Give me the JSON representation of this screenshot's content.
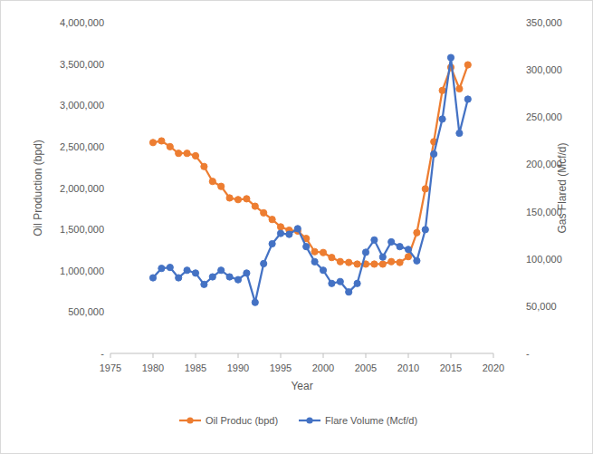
{
  "chart_data": {
    "type": "line",
    "x_label": "Year",
    "y_label": "Oil Production (bpd)",
    "y2_label": "Gas Flared (Mcf/d)",
    "x": [
      1980,
      1981,
      1982,
      1983,
      1984,
      1985,
      1986,
      1987,
      1988,
      1989,
      1990,
      1991,
      1992,
      1993,
      1994,
      1995,
      1996,
      1997,
      1998,
      1999,
      2000,
      2001,
      2002,
      2003,
      2004,
      2005,
      2006,
      2007,
      2008,
      2009,
      2010,
      2011,
      2012,
      2013,
      2014,
      2015,
      2016,
      2017
    ],
    "series": [
      {
        "name": "Oil Produc (bpd)",
        "color": "#ed7d31",
        "marker": "circle",
        "values": [
          2550000,
          2570000,
          2500000,
          2420000,
          2420000,
          2390000,
          2260000,
          2080000,
          2020000,
          1880000,
          1860000,
          1870000,
          1780000,
          1700000,
          1620000,
          1530000,
          1490000,
          1480000,
          1390000,
          1230000,
          1220000,
          1160000,
          1110000,
          1100000,
          1080000,
          1080000,
          1080000,
          1080000,
          1110000,
          1100000,
          1170000,
          1460000,
          1990000,
          2560000,
          3180000,
          3460000,
          3200000,
          3490000
        ]
      },
      {
        "name": "Flare Volume (Mcf/d)",
        "color": "#4472c4",
        "marker": "circle",
        "axis": "y2",
        "values": [
          80000,
          90000,
          91000,
          80000,
          88000,
          85000,
          73000,
          81000,
          88000,
          81000,
          78000,
          85000,
          54000,
          95000,
          116000,
          127000,
          126000,
          132000,
          113000,
          97000,
          88000,
          74000,
          76000,
          65000,
          74000,
          107000,
          120000,
          102000,
          118000,
          113000,
          110000,
          98000,
          131000,
          211000,
          248000,
          313000,
          233000,
          269000
        ]
      }
    ],
    "xlim": [
      1975,
      2020
    ],
    "xticks": [
      1975,
      1980,
      1985,
      1990,
      1995,
      2000,
      2005,
      2010,
      2015,
      2020
    ],
    "ylim": [
      0,
      4000000
    ],
    "yticks": [
      {
        "value": 0,
        "label": "-"
      },
      {
        "value": 500000,
        "label": "500,000"
      },
      {
        "value": 1000000,
        "label": "1,000,000"
      },
      {
        "value": 1500000,
        "label": "1,500,000"
      },
      {
        "value": 2000000,
        "label": "2,000,000"
      },
      {
        "value": 2500000,
        "label": "2,500,000"
      },
      {
        "value": 3000000,
        "label": "3,000,000"
      },
      {
        "value": 3500000,
        "label": "3,500,000"
      },
      {
        "value": 4000000,
        "label": "4,000,000"
      }
    ],
    "y2lim": [
      0,
      350000
    ],
    "y2ticks": [
      {
        "value": 0,
        "label": "-"
      },
      {
        "value": 50000,
        "label": "50,000"
      },
      {
        "value": 100000,
        "label": "100,000"
      },
      {
        "value": 150000,
        "label": "150,000"
      },
      {
        "value": 200000,
        "label": "200,000"
      },
      {
        "value": 250000,
        "label": "250,000"
      },
      {
        "value": 300000,
        "label": "300,000"
      },
      {
        "value": 350000,
        "label": "350,000"
      }
    ],
    "grid": false,
    "legend": "bottom"
  }
}
